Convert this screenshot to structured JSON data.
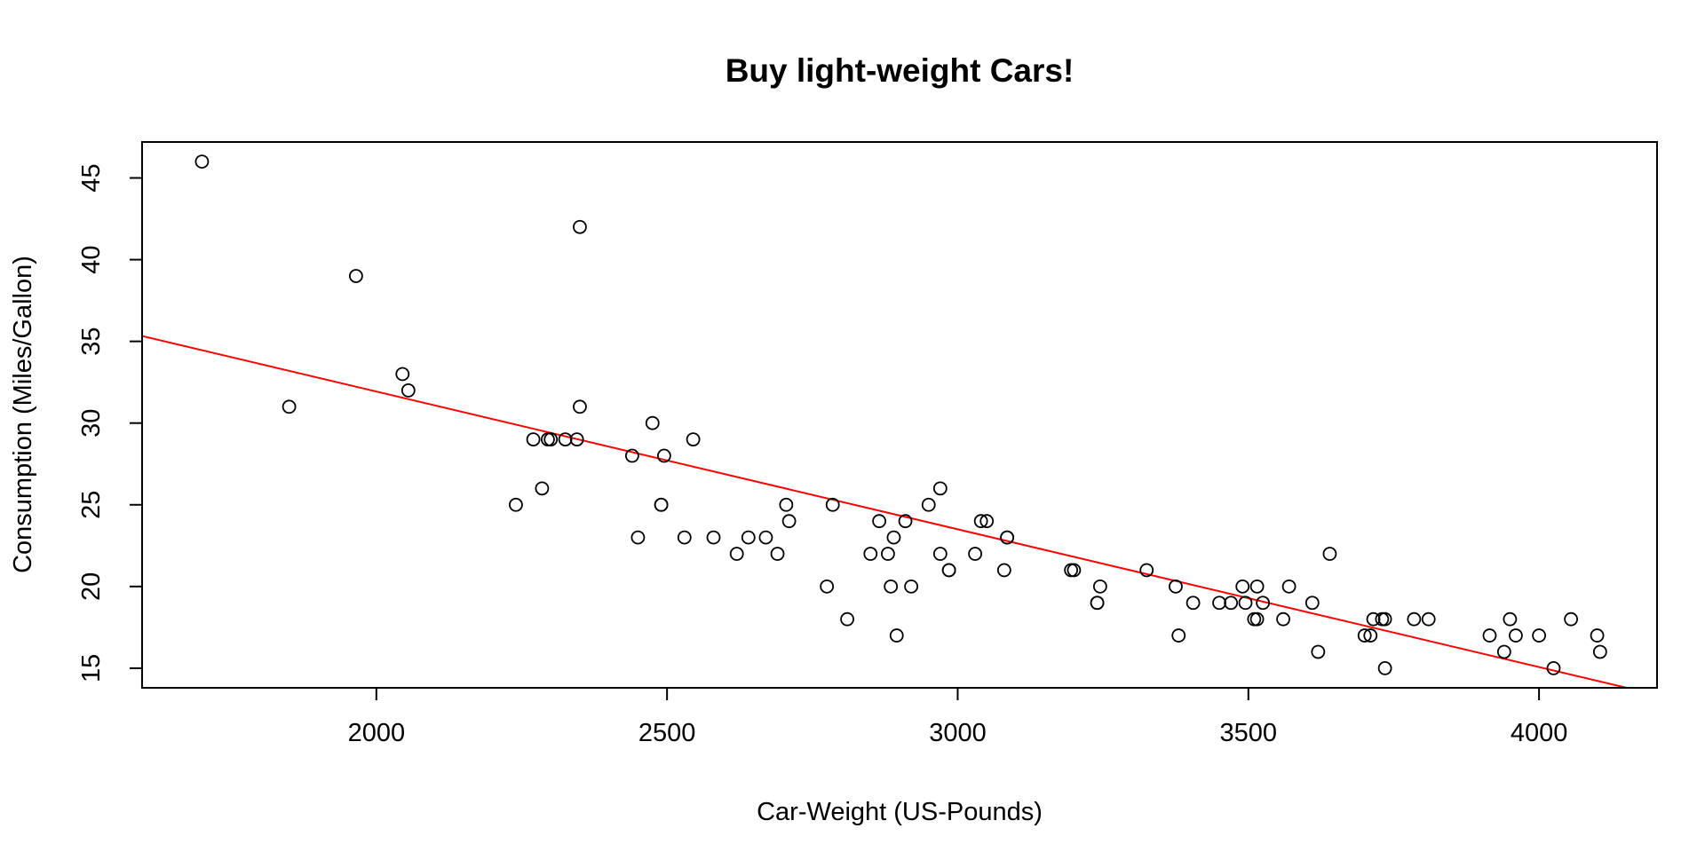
{
  "chart_data": {
    "type": "scatter",
    "title": "Buy light-weight Cars!",
    "xlabel": "Car-Weight (US-Pounds)",
    "ylabel": "Consumption (Miles/Gallon)",
    "xlim": [
      1597,
      4203
    ],
    "ylim": [
      13.8,
      47.2
    ],
    "x_ticks": [
      2000,
      2500,
      3000,
      3500,
      4000
    ],
    "y_ticks": [
      15,
      20,
      25,
      30,
      35,
      40,
      45
    ],
    "grid": false,
    "legend": "none",
    "point_color": "#000000",
    "regression_color": "#ff0000",
    "regression_line": {
      "intercept": 48.79,
      "slope": -0.00843
    },
    "points": [
      [
        1700,
        46
      ],
      [
        1850,
        31
      ],
      [
        1965,
        39
      ],
      [
        2045,
        33
      ],
      [
        2055,
        32
      ],
      [
        2240,
        25
      ],
      [
        2270,
        29
      ],
      [
        2285,
        26
      ],
      [
        2295,
        29
      ],
      [
        2300,
        29
      ],
      [
        2325,
        29
      ],
      [
        2345,
        29
      ],
      [
        2350,
        31
      ],
      [
        2350,
        42
      ],
      [
        2440,
        28
      ],
      [
        2450,
        23
      ],
      [
        2475,
        30
      ],
      [
        2490,
        25
      ],
      [
        2490,
        25
      ],
      [
        2495,
        28
      ],
      [
        2530,
        23
      ],
      [
        2545,
        29
      ],
      [
        2580,
        23
      ],
      [
        2620,
        22
      ],
      [
        2640,
        23
      ],
      [
        2670,
        23
      ],
      [
        2690,
        22
      ],
      [
        2705,
        25
      ],
      [
        2710,
        24
      ],
      [
        2775,
        20
      ],
      [
        2785,
        25
      ],
      [
        2810,
        18
      ],
      [
        2850,
        22
      ],
      [
        2865,
        24
      ],
      [
        2880,
        22
      ],
      [
        2885,
        20
      ],
      [
        2890,
        23
      ],
      [
        2895,
        17
      ],
      [
        2910,
        24
      ],
      [
        2920,
        20
      ],
      [
        2950,
        25
      ],
      [
        2970,
        22
      ],
      [
        2970,
        26
      ],
      [
        2985,
        21
      ],
      [
        2985,
        21
      ],
      [
        3030,
        22
      ],
      [
        3040,
        24
      ],
      [
        3050,
        24
      ],
      [
        3080,
        21
      ],
      [
        3085,
        23
      ],
      [
        3085,
        23
      ],
      [
        3195,
        21
      ],
      [
        3200,
        21
      ],
      [
        3240,
        19
      ],
      [
        3245,
        20
      ],
      [
        3240,
        19
      ],
      [
        3325,
        21
      ],
      [
        3375,
        20
      ],
      [
        3380,
        17
      ],
      [
        3405,
        19
      ],
      [
        3450,
        19
      ],
      [
        3470,
        19
      ],
      [
        3490,
        20
      ],
      [
        3495,
        19
      ],
      [
        3510,
        18
      ],
      [
        3515,
        18
      ],
      [
        3515,
        20
      ],
      [
        3525,
        19
      ],
      [
        3560,
        18
      ],
      [
        3570,
        20
      ],
      [
        3610,
        19
      ],
      [
        3620,
        16
      ],
      [
        3640,
        22
      ],
      [
        3700,
        17
      ],
      [
        3710,
        17
      ],
      [
        3715,
        18
      ],
      [
        3730,
        18
      ],
      [
        3735,
        18
      ],
      [
        3735,
        15
      ],
      [
        3785,
        18
      ],
      [
        3810,
        18
      ],
      [
        3915,
        17
      ],
      [
        3940,
        16
      ],
      [
        3950,
        18
      ],
      [
        3960,
        17
      ],
      [
        4000,
        17
      ],
      [
        4025,
        15
      ],
      [
        4055,
        18
      ],
      [
        4100,
        17
      ],
      [
        4105,
        16
      ]
    ]
  }
}
